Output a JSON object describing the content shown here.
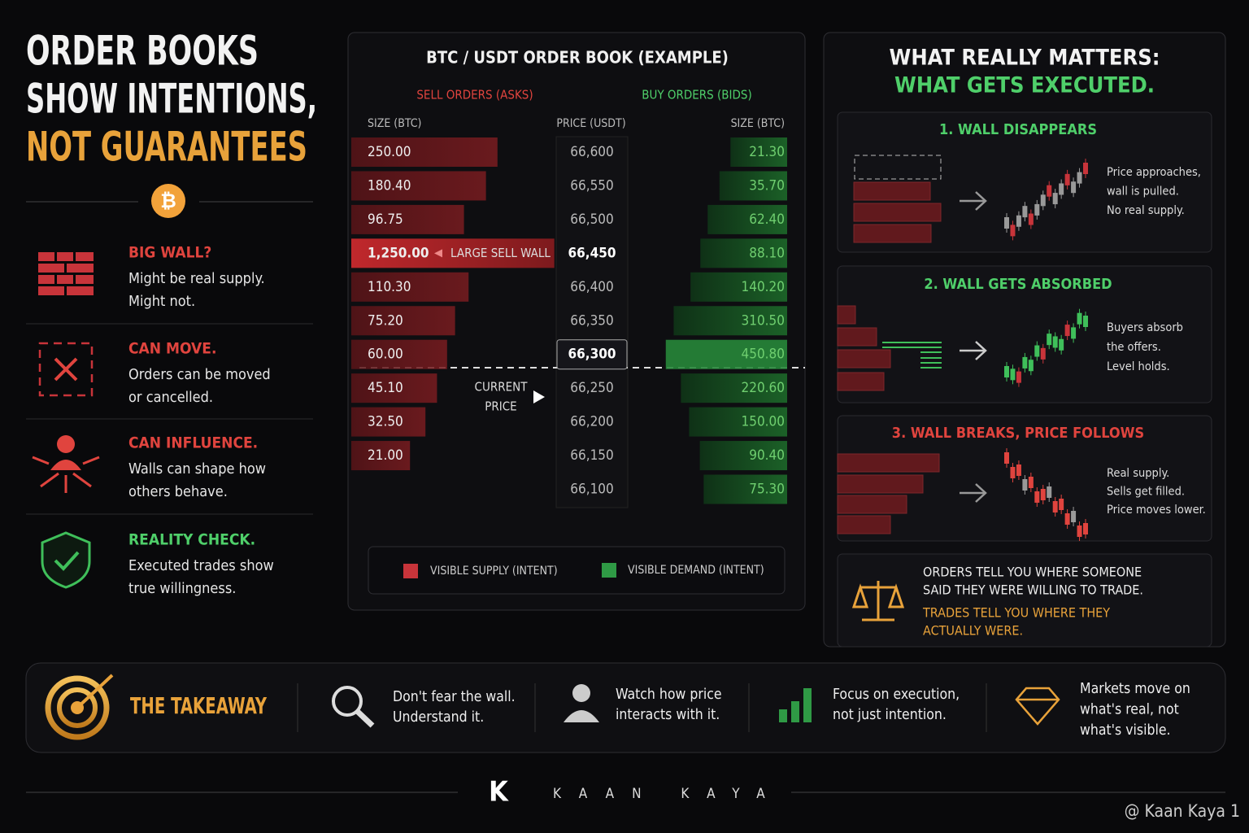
{
  "left": {
    "title": [
      "ORDER BOOKS",
      "SHOW INTENTIONS,",
      "NOT GUARANTEES"
    ],
    "bitcoin_symbol": "₿",
    "items": [
      {
        "heading": "BIG WALL?",
        "lines": [
          "Might be real supply.",
          "Might not."
        ]
      },
      {
        "heading": "CAN MOVE.",
        "lines": [
          "Orders can be moved",
          "or cancelled."
        ]
      },
      {
        "heading": "CAN INFLUENCE.",
        "lines": [
          "Walls can shape how",
          "others behave."
        ]
      },
      {
        "heading": "REALITY CHECK.",
        "lines": [
          "Executed trades show",
          "true willingness."
        ]
      }
    ]
  },
  "order_book": {
    "title": "BTC / USDT ORDER BOOK (EXAMPLE)",
    "asks_label": "SELL ORDERS (ASKS)",
    "bids_label": "BUY ORDERS (BIDS)",
    "size_label_left": "SIZE (BTC)",
    "price_label": "PRICE (USDT)",
    "size_label_right": "SIZE (BTC)",
    "prices": [
      "66,600",
      "66,550",
      "66,500",
      "66,450",
      "66,400",
      "66,350",
      "66,300",
      "66,250",
      "66,200",
      "66,150",
      "66,100"
    ],
    "asks": {
      "values": [
        250,
        180.4,
        96.75,
        1250,
        110.3,
        75.2,
        60,
        45.1,
        32.5,
        21,
        null
      ],
      "value_labels": [
        "250.00",
        "180.40",
        "96.75",
        "1,250.00",
        "110.30",
        "75.20",
        "60.00",
        "45.10",
        "32.50",
        "21.00",
        null
      ]
    },
    "bids": {
      "values": [
        21.3,
        35.7,
        62.4,
        88.1,
        140.2,
        310.5,
        450.8,
        220.6,
        150,
        90.4,
        75.3
      ],
      "value_labels": [
        "21.30",
        "35.70",
        "62.40",
        "88.10",
        "140.20",
        "310.50",
        "450.80",
        "220.60",
        "150.00",
        "90.40",
        "75.30"
      ]
    },
    "wall_label": "LARGE SELL WALL",
    "current_price_label": [
      "CURRENT",
      "PRICE"
    ],
    "legend": [
      "VISIBLE SUPPLY (INTENT)",
      "VISIBLE DEMAND (INTENT)"
    ]
  },
  "right": {
    "title": [
      "WHAT REALLY MATTERS:",
      "WHAT GETS EXECUTED."
    ],
    "scenarios": [
      {
        "title": "1. WALL DISAPPEARS",
        "lines": [
          "Price approaches,",
          "wall is pulled.",
          "No real supply."
        ]
      },
      {
        "title": "2. WALL GETS ABSORBED",
        "lines": [
          "Buyers absorb",
          "the offers.",
          "Level holds."
        ]
      },
      {
        "title": "3. WALL BREAKS, PRICE FOLLOWS",
        "lines": [
          "Real supply.",
          "Sells get filled.",
          "Price moves lower."
        ]
      }
    ],
    "quote": {
      "lines": [
        "ORDERS TELL YOU WHERE SOMEONE",
        "SAID THEY WERE WILLING TO TRADE."
      ],
      "highlight": [
        "TRADES TELL YOU WHERE THEY",
        "ACTUALLY WERE."
      ]
    }
  },
  "takeaway": {
    "label": "THE TAKEAWAY",
    "items": [
      [
        "Don't fear the wall.",
        "Understand it."
      ],
      [
        "Watch how price",
        "interacts with it."
      ],
      [
        "Focus on execution,",
        "not just intention."
      ],
      [
        "Markets move on",
        "what's real, not",
        "what's visible."
      ]
    ]
  },
  "footer": {
    "logo": "K",
    "name": "KAAN KAYA",
    "watermark": "@ Kaan Kaya 1"
  }
}
